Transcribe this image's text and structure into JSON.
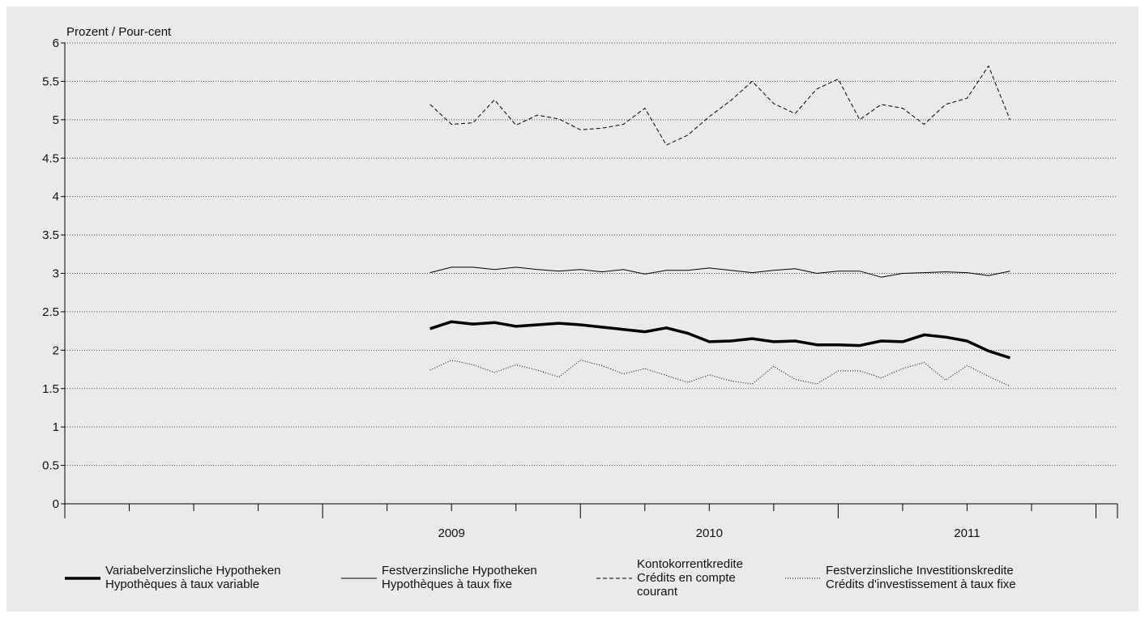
{
  "chart_data": {
    "type": "line",
    "ylabel": "Prozent / Pour-cent",
    "ylim": [
      0,
      6
    ],
    "yticks": [
      "0",
      "0.5",
      "1",
      "1.5",
      "2",
      "2.5",
      "3",
      "3.5",
      "4",
      "4.5",
      "5",
      "5.5",
      "6"
    ],
    "x_start": "2008-12",
    "x_end": "2011-04",
    "year_labels": [
      "2009",
      "2010",
      "2011"
    ],
    "grid": true,
    "legend_position": "bottom",
    "series": [
      {
        "name": "Variabelverzinsliche Hypotheken / Hypothèques à taux variable",
        "name_lines": [
          "Variabelverzinsliche Hypotheken",
          "Hypothèques à taux variable"
        ],
        "style": "thick",
        "values": [
          2.28,
          2.37,
          2.34,
          2.36,
          2.31,
          2.33,
          2.35,
          2.33,
          2.3,
          2.27,
          2.24,
          2.29,
          2.22,
          2.11,
          2.12,
          2.15,
          2.11,
          2.12,
          2.07,
          2.07,
          2.06,
          2.12,
          2.11,
          2.2,
          2.17,
          2.12,
          1.99,
          1.9
        ]
      },
      {
        "name": "Festverzinsliche Hypotheken / Hypothèques à taux fixe",
        "name_lines": [
          "Festverzinsliche Hypotheken",
          "Hypothèques à taux fixe"
        ],
        "style": "thin",
        "values": [
          3.01,
          3.08,
          3.08,
          3.05,
          3.08,
          3.05,
          3.03,
          3.05,
          3.02,
          3.05,
          2.99,
          3.04,
          3.04,
          3.07,
          3.04,
          3.01,
          3.04,
          3.06,
          3.0,
          3.03,
          3.03,
          2.95,
          3.0,
          3.01,
          3.02,
          3.01,
          2.97,
          3.03
        ]
      },
      {
        "name": "Kontokorrentkredite / Crédits en compte courant",
        "name_lines": [
          "Kontokorrentkredite",
          "Crédits en compte",
          "courant"
        ],
        "style": "dashed",
        "values": [
          5.2,
          4.94,
          4.96,
          5.26,
          4.93,
          5.06,
          5.01,
          4.87,
          4.89,
          4.94,
          5.15,
          4.67,
          4.8,
          5.04,
          5.25,
          5.5,
          5.21,
          5.08,
          5.4,
          5.53,
          5.0,
          5.2,
          5.15,
          4.94,
          5.2,
          5.28,
          5.7,
          5.0
        ]
      },
      {
        "name": "Festverzinsliche Investitionskredite / Crédits d'investissement à taux fixe",
        "name_lines": [
          "Festverzinsliche Investitionskredite",
          "Crédits d'investissement à taux fixe"
        ],
        "style": "dotted",
        "values": [
          1.74,
          1.87,
          1.81,
          1.71,
          1.81,
          1.74,
          1.65,
          1.87,
          1.8,
          1.69,
          1.76,
          1.67,
          1.58,
          1.68,
          1.6,
          1.56,
          1.79,
          1.62,
          1.56,
          1.73,
          1.73,
          1.64,
          1.76,
          1.84,
          1.61,
          1.8,
          1.66,
          1.53
        ]
      }
    ]
  }
}
